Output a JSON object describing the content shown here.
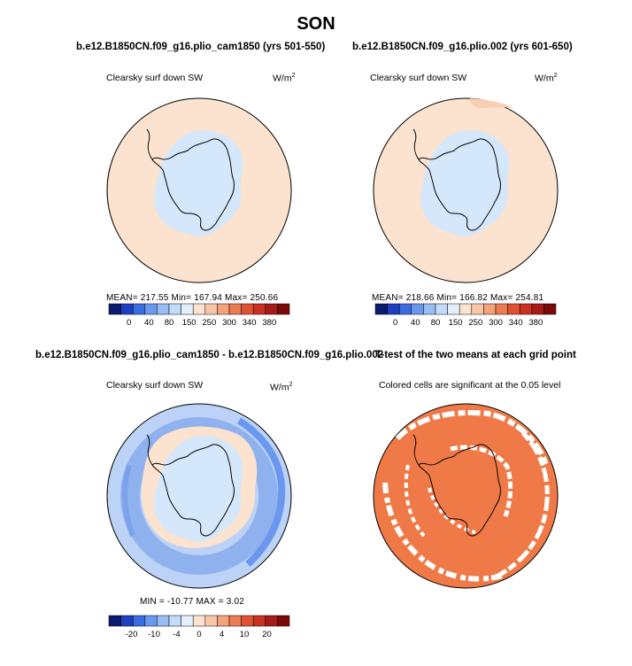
{
  "title": "SON",
  "panels": [
    {
      "title": "b.e12.B1850CN.f09_g16.plio_cam1850 (yrs 501-550)",
      "left_label": "Clearsky surf down SW",
      "units_base": "W/m",
      "units_sup": "2",
      "stats": "MEAN= 217.55   Min= 167.94   Max= 250.66"
    },
    {
      "title": "b.e12.B1850CN.f09_g16.plio.002 (yrs 601-650)",
      "left_label": "Clearsky surf down SW",
      "units_base": "W/m",
      "units_sup": "2",
      "stats": "MEAN= 218.66   Min= 166.82   Max= 254.81"
    },
    {
      "title": "b.e12.B1850CN.f09_g16.plio_cam1850 - b.e12.B1850CN.f09_g16.plio.002",
      "left_label": "Clearsky surf down SW",
      "units_base": "W/m",
      "units_sup": "2",
      "stats": "MIN = -10.77  MAX =    3.02"
    },
    {
      "title": "T-test of the two means at each grid point",
      "left_label": "Colored cells are significant at the 0.05 level"
    }
  ],
  "colorbars": {
    "absolute": {
      "labels": [
        "0",
        "40",
        "80",
        "150",
        "250",
        "300",
        "340",
        "380"
      ],
      "colors": [
        "#0a1a6e",
        "#1f3fbf",
        "#3a6de0",
        "#6b98ee",
        "#99bdf5",
        "#c3dbfa",
        "#e4effc",
        "#fbe3cf",
        "#f8c6a6",
        "#f3a27a",
        "#ec7a52",
        "#de5233",
        "#c93222",
        "#a61a17",
        "#7a0a0a"
      ]
    },
    "difference": {
      "labels": [
        "-20",
        "-10",
        "-4",
        "0",
        "4",
        "10",
        "20"
      ],
      "colors": [
        "#0a1a6e",
        "#1f3fbf",
        "#3a6de0",
        "#6b98ee",
        "#99bdf5",
        "#c3dbfa",
        "#e4effc",
        "#fbe3cf",
        "#f8c6a6",
        "#f3a27a",
        "#ec7a52",
        "#de5233",
        "#c93222",
        "#a61a17",
        "#7a0a0a"
      ]
    }
  },
  "map_colors": {
    "ocean_light": "#fbe3cf",
    "antarctic": "#d4e7fb",
    "diff_ring": "#a9c6f4",
    "diff_dark": "#7aa3ec",
    "diff_mid": "#c9dcf8",
    "sig": "#f07a47"
  }
}
